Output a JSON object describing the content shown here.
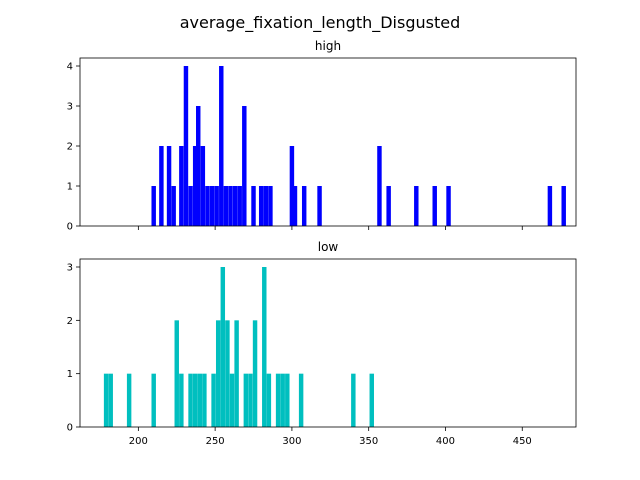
{
  "figure": {
    "title": "average_fixation_length_Disgusted"
  },
  "chart_data": [
    {
      "type": "bar",
      "title": "high",
      "color": "#0000ff",
      "xlim": [
        162,
        485
      ],
      "ylim": [
        0,
        4.2
      ],
      "xticks": [
        200,
        250,
        300,
        350,
        400,
        450
      ],
      "xtick_labels_shown": false,
      "yticks": [
        0,
        1,
        2,
        3,
        4
      ],
      "bar_width": 2.9,
      "bins": [
        {
          "x": 210,
          "count": 1
        },
        {
          "x": 215,
          "count": 2
        },
        {
          "x": 220,
          "count": 2
        },
        {
          "x": 223,
          "count": 1
        },
        {
          "x": 228,
          "count": 2
        },
        {
          "x": 231,
          "count": 4
        },
        {
          "x": 234,
          "count": 1
        },
        {
          "x": 237,
          "count": 2
        },
        {
          "x": 239,
          "count": 3
        },
        {
          "x": 242,
          "count": 2
        },
        {
          "x": 245,
          "count": 1
        },
        {
          "x": 248,
          "count": 1
        },
        {
          "x": 251,
          "count": 1
        },
        {
          "x": 254,
          "count": 4
        },
        {
          "x": 257,
          "count": 1
        },
        {
          "x": 260,
          "count": 1
        },
        {
          "x": 263,
          "count": 1
        },
        {
          "x": 266,
          "count": 1
        },
        {
          "x": 269,
          "count": 3
        },
        {
          "x": 275,
          "count": 1
        },
        {
          "x": 280,
          "count": 1
        },
        {
          "x": 283,
          "count": 1
        },
        {
          "x": 286,
          "count": 1
        },
        {
          "x": 300,
          "count": 2
        },
        {
          "x": 302,
          "count": 1
        },
        {
          "x": 308,
          "count": 1
        },
        {
          "x": 318,
          "count": 1
        },
        {
          "x": 357,
          "count": 2
        },
        {
          "x": 363,
          "count": 1
        },
        {
          "x": 381,
          "count": 1
        },
        {
          "x": 393,
          "count": 1
        },
        {
          "x": 402,
          "count": 1
        },
        {
          "x": 468,
          "count": 1
        },
        {
          "x": 477,
          "count": 1
        }
      ]
    },
    {
      "type": "bar",
      "title": "low",
      "color": "#00bfbf",
      "xlim": [
        162,
        485
      ],
      "ylim": [
        0,
        3.15
      ],
      "xticks": [
        200,
        250,
        300,
        350,
        400,
        450
      ],
      "xtick_labels": [
        "200",
        "250",
        "300",
        "350",
        "400",
        "450"
      ],
      "xtick_labels_shown": true,
      "yticks": [
        0,
        1,
        2,
        3
      ],
      "bar_width": 2.9,
      "bins": [
        {
          "x": 179,
          "count": 1
        },
        {
          "x": 182,
          "count": 1
        },
        {
          "x": 194,
          "count": 1
        },
        {
          "x": 210,
          "count": 1
        },
        {
          "x": 225,
          "count": 2
        },
        {
          "x": 228,
          "count": 1
        },
        {
          "x": 234,
          "count": 1
        },
        {
          "x": 237,
          "count": 1
        },
        {
          "x": 240,
          "count": 1
        },
        {
          "x": 243,
          "count": 1
        },
        {
          "x": 249,
          "count": 1
        },
        {
          "x": 252,
          "count": 2
        },
        {
          "x": 255,
          "count": 3
        },
        {
          "x": 258,
          "count": 2
        },
        {
          "x": 261,
          "count": 1
        },
        {
          "x": 264,
          "count": 2
        },
        {
          "x": 270,
          "count": 1
        },
        {
          "x": 273,
          "count": 1
        },
        {
          "x": 276,
          "count": 2
        },
        {
          "x": 282,
          "count": 3
        },
        {
          "x": 285,
          "count": 1
        },
        {
          "x": 291,
          "count": 1
        },
        {
          "x": 294,
          "count": 1
        },
        {
          "x": 297,
          "count": 1
        },
        {
          "x": 306,
          "count": 1
        },
        {
          "x": 340,
          "count": 1
        },
        {
          "x": 352,
          "count": 1
        }
      ]
    }
  ]
}
